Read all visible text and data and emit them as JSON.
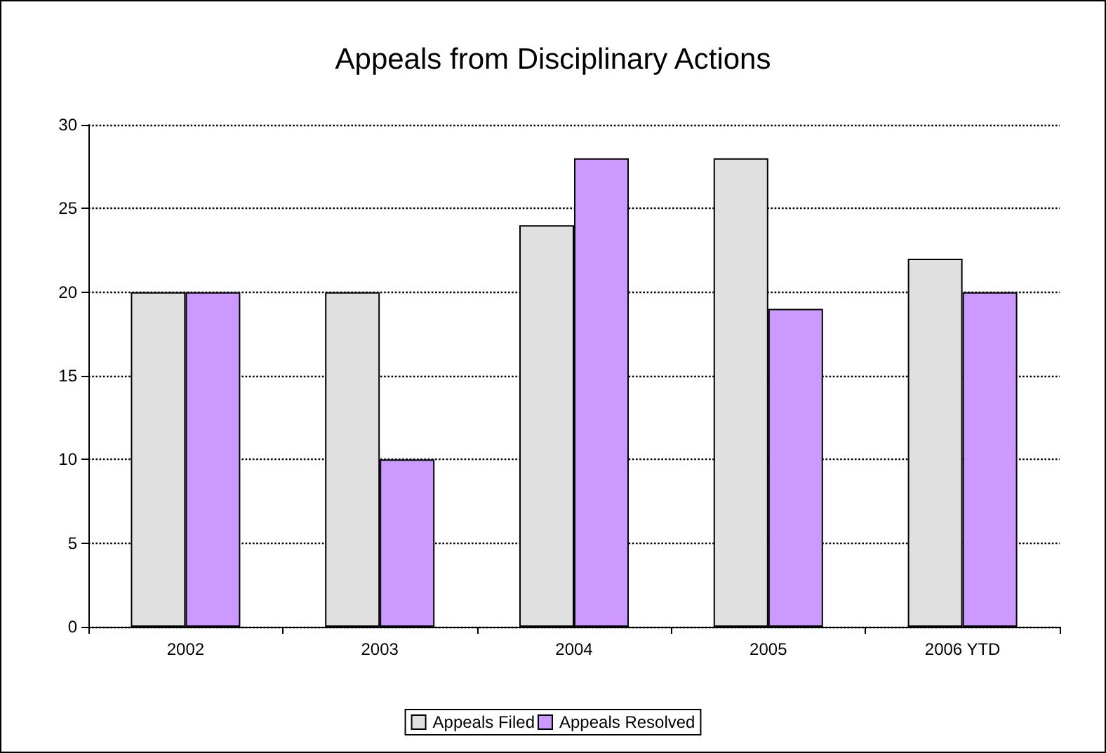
{
  "chart_data": {
    "type": "bar",
    "title": "Appeals from Disciplinary Actions",
    "categories": [
      "2002",
      "2003",
      "2004",
      "2005",
      "2006 YTD"
    ],
    "series": [
      {
        "name": "Appeals Filed",
        "color": "#e0e0e0",
        "values": [
          20,
          20,
          24,
          28,
          22
        ]
      },
      {
        "name": "Appeals Resolved",
        "color": "#cc99ff",
        "values": [
          20,
          10,
          28,
          19,
          20
        ]
      }
    ],
    "ylim": [
      0,
      30
    ],
    "yticks": [
      0,
      5,
      10,
      15,
      20,
      25,
      30
    ],
    "grid": "y",
    "legend": "bottom"
  }
}
